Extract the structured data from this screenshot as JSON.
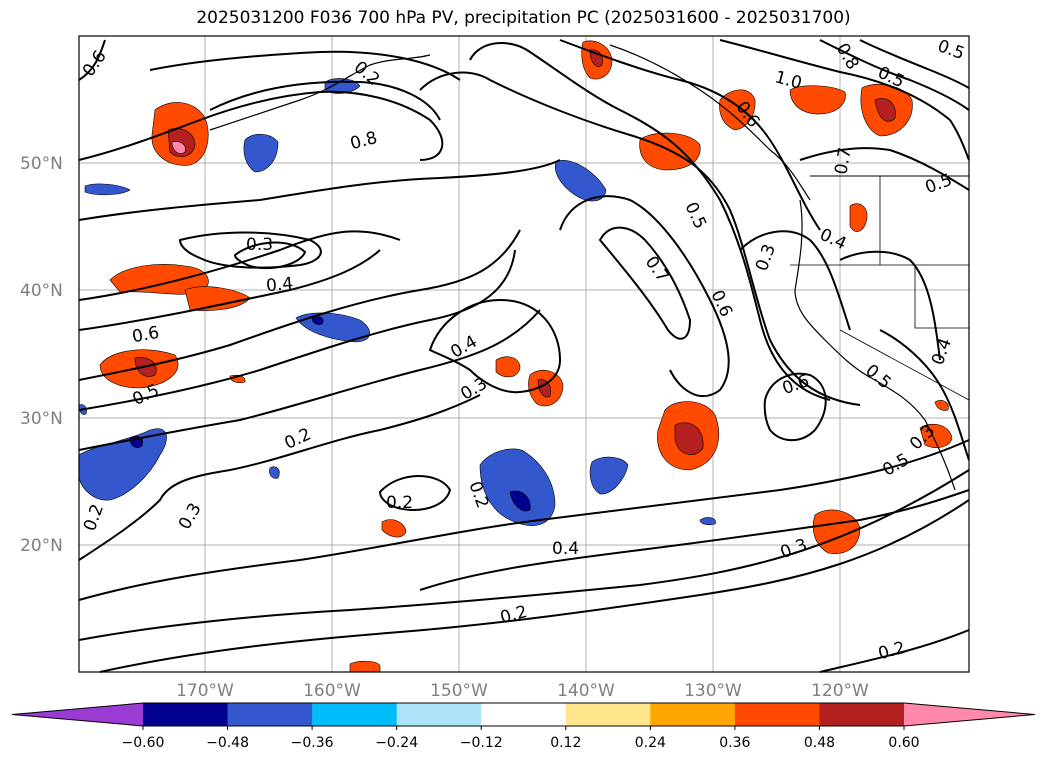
{
  "title": "2025031200 F036 700 hPa PV, precipitation PC (2025031600 - 2025031700)",
  "lat_ticks": [
    "20°N",
    "30°N",
    "40°N",
    "50°N"
  ],
  "lon_ticks": [
    "170°W",
    "160°W",
    "150°W",
    "140°W",
    "130°W",
    "120°W"
  ],
  "contour_labels": [
    "0.6",
    "0.8",
    "1.0",
    "0.6",
    "0.8",
    "0.5",
    "0.5",
    "0.3",
    "0.4",
    "0.6",
    "0.5",
    "0.4",
    "0.3",
    "0.2",
    "0.3",
    "0.2",
    "0.2",
    "0.4",
    "0.2",
    "0.2",
    "0.5",
    "0.7",
    "0.6",
    "0.3",
    "0.4",
    "0.6",
    "0.5",
    "0.5",
    "0.3",
    "0.7",
    "0.5",
    "0.4",
    "0.2",
    "0.3",
    "0.2"
  ],
  "colorbar": {
    "labels": [
      "−0.60",
      "−0.48",
      "−0.36",
      "−0.24",
      "−0.12",
      "0.12",
      "0.24",
      "0.36",
      "0.48",
      "0.60"
    ],
    "colors": [
      "#9a3bd4",
      "#02008f",
      "#3357cc",
      "#00bcf8",
      "#ade3f8",
      "#ffffff",
      "#ffe68c",
      "#ffa602",
      "#ff4a00",
      "#b3201f",
      "#ff88ab"
    ]
  }
}
